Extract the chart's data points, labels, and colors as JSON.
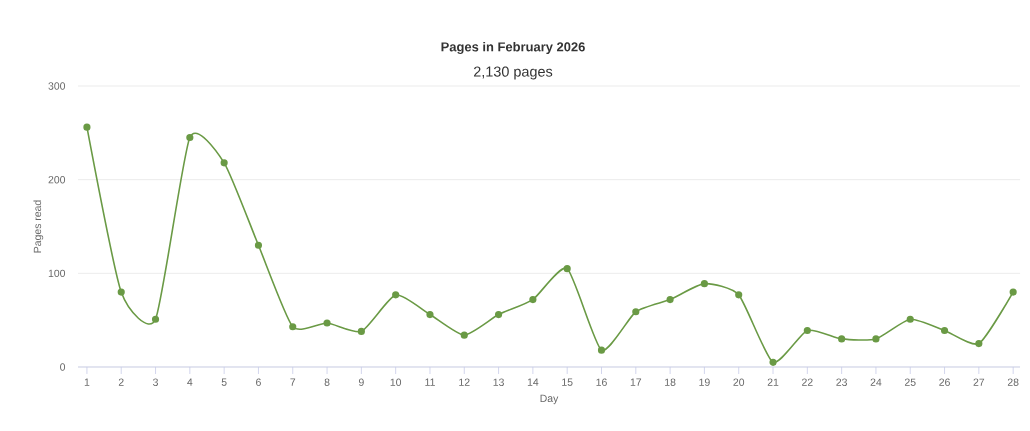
{
  "chart_data": {
    "type": "line",
    "title": "Pages in February 2026",
    "subtitle": "2,130 pages",
    "xlabel": "Day",
    "ylabel": "Pages read",
    "categories": [
      "1",
      "2",
      "3",
      "4",
      "5",
      "6",
      "7",
      "8",
      "9",
      "10",
      "11",
      "12",
      "13",
      "14",
      "15",
      "16",
      "17",
      "18",
      "19",
      "20",
      "21",
      "22",
      "23",
      "24",
      "25",
      "26",
      "27",
      "28"
    ],
    "values": [
      256,
      80,
      51,
      245,
      218,
      130,
      43,
      47,
      38,
      77,
      56,
      34,
      56,
      72,
      105,
      18,
      59,
      72,
      89,
      77,
      5,
      39,
      30,
      30,
      51,
      39,
      25,
      80
    ],
    "color": "#6a9a45",
    "ylim": [
      0,
      300
    ],
    "yticks": [
      0,
      100,
      200,
      300
    ],
    "grid": "y",
    "marker": "circle",
    "line_style": "solid"
  }
}
